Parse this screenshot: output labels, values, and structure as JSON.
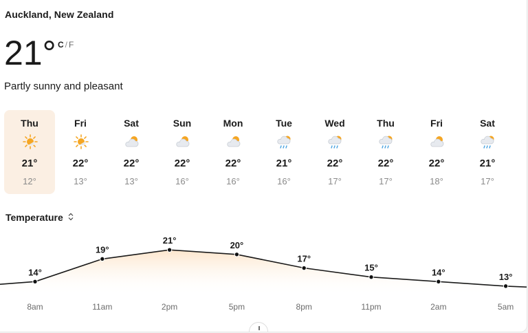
{
  "location": "Auckland, New Zealand",
  "current": {
    "temperature": "21°",
    "unit_c": "C",
    "unit_sep": "/",
    "unit_f": "F",
    "condition": "Partly sunny and pleasant"
  },
  "colors": {
    "selected_bg": "#fbefe3",
    "sun": "#f5a623",
    "cloud": "#d9dde3",
    "rain": "#4aa3e0",
    "area_fill": "#fde4c9",
    "line": "#1a1a1a"
  },
  "days": [
    {
      "name": "Thu",
      "icon": "sunny-icon",
      "high": "21°",
      "low": "12°",
      "selected": true
    },
    {
      "name": "Fri",
      "icon": "sunny-icon",
      "high": "22°",
      "low": "13°"
    },
    {
      "name": "Sat",
      "icon": "partly-cloudy-icon",
      "high": "22°",
      "low": "13°"
    },
    {
      "name": "Sun",
      "icon": "partly-cloudy-icon",
      "high": "22°",
      "low": "16°"
    },
    {
      "name": "Mon",
      "icon": "partly-cloudy-icon",
      "high": "22°",
      "low": "16°"
    },
    {
      "name": "Tue",
      "icon": "rain-icon",
      "high": "21°",
      "low": "16°"
    },
    {
      "name": "Wed",
      "icon": "rain-icon",
      "high": "22°",
      "low": "17°"
    },
    {
      "name": "Thu",
      "icon": "rain-icon",
      "high": "22°",
      "low": "17°"
    },
    {
      "name": "Fri",
      "icon": "partly-cloudy-icon",
      "high": "22°",
      "low": "18°"
    },
    {
      "name": "Sat",
      "icon": "rain-icon",
      "high": "21°",
      "low": "17°"
    }
  ],
  "metric": {
    "label": "Temperature",
    "chevron": "⌃⌄"
  },
  "chart_data": {
    "type": "area",
    "categories": [
      "8am",
      "11am",
      "2pm",
      "5pm",
      "8pm",
      "11pm",
      "2am",
      "5am"
    ],
    "values": [
      14,
      19,
      21,
      20,
      17,
      15,
      14,
      13
    ],
    "value_labels": [
      "14°",
      "19°",
      "21°",
      "20°",
      "17°",
      "15°",
      "14°",
      "13°"
    ],
    "ylim": [
      6,
      23
    ]
  }
}
